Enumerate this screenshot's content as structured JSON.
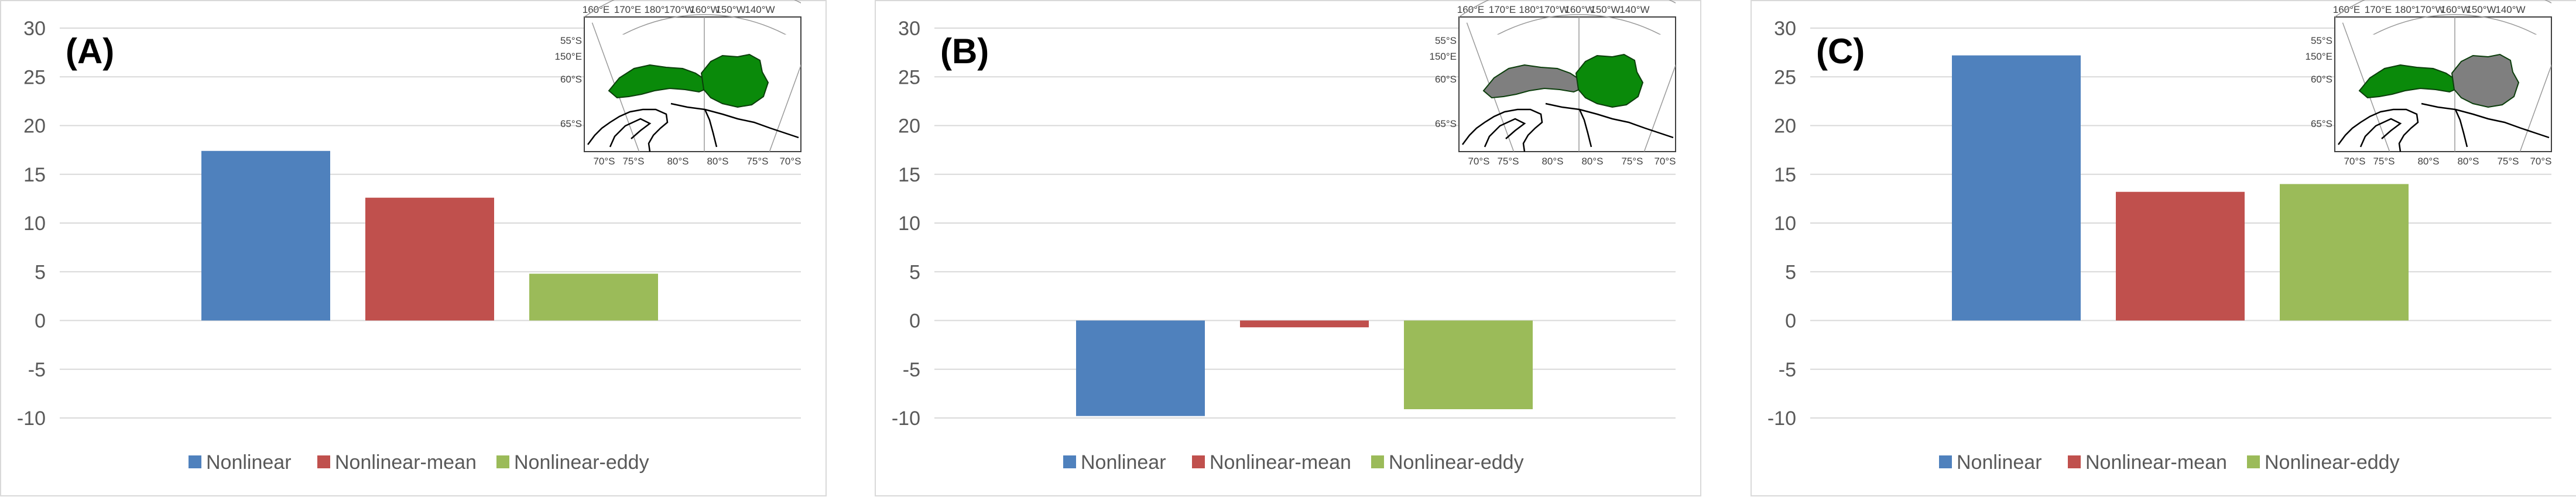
{
  "colors": {
    "Nonlinear": "#4f81bd",
    "Nonlinear-mean": "#c0504d",
    "Nonlinear-eddy": "#9bbb59",
    "region_highlight": "#0a8a0a",
    "region_other": "#7f7f7f"
  },
  "chart_data": [
    {
      "type": "bar",
      "panel_label": "(A)",
      "categories": [
        "Nonlinear",
        "Nonlinear-mean",
        "Nonlinear-eddy"
      ],
      "values": [
        17.4,
        12.6,
        4.8
      ],
      "ylim": [
        -10,
        30
      ],
      "yticks": [
        "-10",
        "-5",
        "0",
        "5",
        "10",
        "15",
        "20",
        "25",
        "30"
      ],
      "grid": true,
      "legend": "bottom",
      "inset_map": {
        "highlight": "full",
        "lon_labels": [
          "160°E",
          "170°E",
          "180°",
          "170°W",
          "160°W",
          "150°W",
          "140°W"
        ],
        "lat_labels": [
          "55°S",
          "150°E",
          "60°S",
          "65°S"
        ],
        "bottom_labels": [
          "70°S",
          "75°S",
          "80°S",
          "80°S",
          "75°S",
          "70°S"
        ]
      }
    },
    {
      "type": "bar",
      "panel_label": "(B)",
      "categories": [
        "Nonlinear",
        "Nonlinear-mean",
        "Nonlinear-eddy"
      ],
      "values": [
        -9.8,
        -0.7,
        -9.1
      ],
      "ylim": [
        -10,
        30
      ],
      "yticks": [
        "-10",
        "-5",
        "0",
        "5",
        "10",
        "15",
        "20",
        "25",
        "30"
      ],
      "grid": true,
      "legend": "bottom",
      "inset_map": {
        "highlight": "east",
        "lon_labels": [
          "160°E",
          "170°E",
          "180°",
          "170°W",
          "160°W",
          "150°W",
          "140°W"
        ],
        "lat_labels": [
          "55°S",
          "150°E",
          "60°S",
          "65°S"
        ],
        "bottom_labels": [
          "70°S",
          "75°S",
          "80°S",
          "80°S",
          "75°S",
          "70°S"
        ]
      }
    },
    {
      "type": "bar",
      "panel_label": "(C)",
      "categories": [
        "Nonlinear",
        "Nonlinear-mean",
        "Nonlinear-eddy"
      ],
      "values": [
        27.2,
        13.2,
        14.0
      ],
      "ylim": [
        -10,
        30
      ],
      "yticks": [
        "-10",
        "-5",
        "0",
        "5",
        "10",
        "15",
        "20",
        "25",
        "30"
      ],
      "grid": true,
      "legend": "bottom",
      "inset_map": {
        "highlight": "west",
        "lon_labels": [
          "160°E",
          "170°E",
          "180°",
          "170°W",
          "160°W",
          "150°W",
          "140°W"
        ],
        "lat_labels": [
          "55°S",
          "150°E",
          "60°S",
          "65°S"
        ],
        "bottom_labels": [
          "70°S",
          "75°S",
          "80°S",
          "80°S",
          "75°S",
          "70°S"
        ]
      }
    }
  ]
}
